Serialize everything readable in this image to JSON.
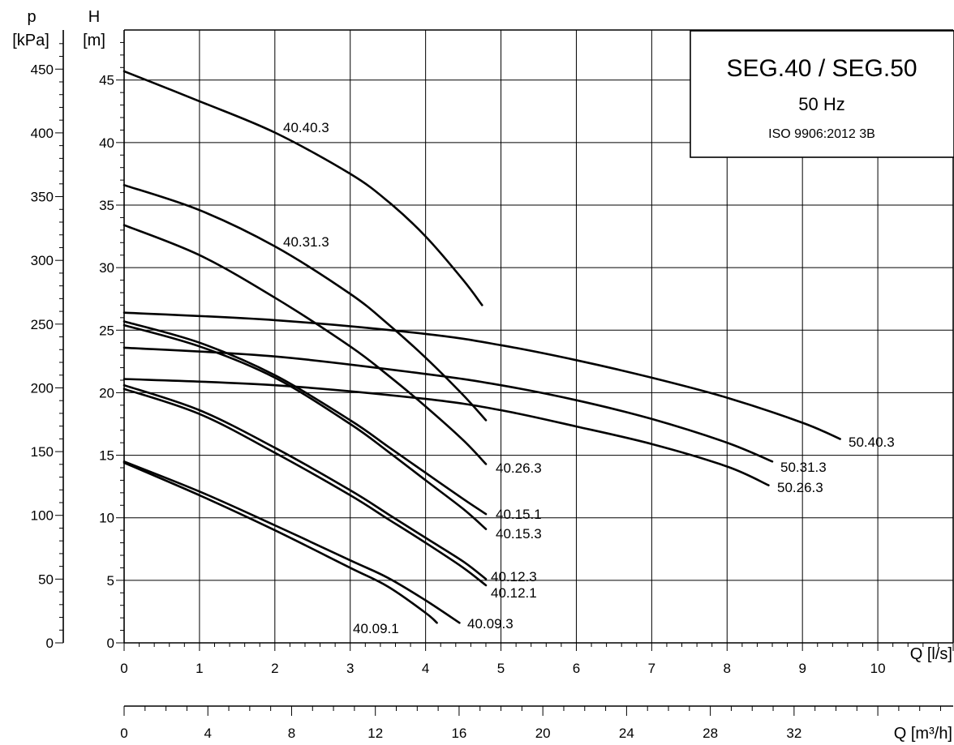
{
  "chart_data": {
    "type": "line",
    "title": "SEG.40 / SEG.50",
    "subtitle": "50 Hz",
    "standard": "ISO 9906:2012 3B",
    "xlabel": "Q [l/s]",
    "x2label": "Q [m³/h]",
    "ylabel_h": "H",
    "ylabel_h_unit": "[m]",
    "ylabel_p": "p",
    "ylabel_p_unit": "[kPa]",
    "xlim": [
      0,
      11
    ],
    "ylim": [
      0,
      49
    ],
    "x_ticks": [
      0,
      1,
      2,
      3,
      4,
      5,
      6,
      7,
      8,
      9,
      10
    ],
    "x_tick_labels": [
      "0",
      "1",
      "2",
      "3",
      "4",
      "5",
      "6",
      "7",
      "8",
      "9",
      "10"
    ],
    "x2_ticks": [
      0,
      4,
      8,
      12,
      16,
      20,
      24,
      28,
      32
    ],
    "x2_tick_labels": [
      "0",
      "4",
      "8",
      "12",
      "16",
      "20",
      "24",
      "28",
      "32"
    ],
    "h_ticks": [
      0,
      5,
      10,
      15,
      20,
      25,
      30,
      35,
      40,
      45
    ],
    "h_tick_labels": [
      "0",
      "5",
      "10",
      "15",
      "20",
      "25",
      "30",
      "35",
      "40",
      "45"
    ],
    "p_ticks": [
      0,
      50,
      100,
      150,
      200,
      250,
      300,
      350,
      400,
      450
    ],
    "p_tick_labels": [
      "0",
      "50",
      "100",
      "150",
      "200",
      "250",
      "300",
      "350",
      "400",
      "450"
    ],
    "grid": true,
    "legend": "none",
    "series": [
      {
        "name": "40.40.3",
        "x": [
          0,
          1,
          2,
          3,
          3.5,
          4,
          4.5,
          4.75
        ],
        "y": [
          45.7,
          43.3,
          40.8,
          37.5,
          35.3,
          32.5,
          29.0,
          27.0
        ]
      },
      {
        "name": "40.31.3",
        "x": [
          0,
          1,
          2,
          3,
          3.5,
          4,
          4.5,
          4.8
        ],
        "y": [
          36.6,
          34.6,
          31.7,
          27.9,
          25.5,
          22.8,
          19.8,
          17.8
        ]
      },
      {
        "name": "40.26.3",
        "x": [
          0,
          1,
          2,
          3,
          3.5,
          4,
          4.5,
          4.8
        ],
        "y": [
          33.4,
          31.0,
          27.6,
          23.7,
          21.4,
          18.9,
          16.2,
          14.3
        ]
      },
      {
        "name": "40.15.1",
        "x": [
          0,
          1,
          2,
          3,
          3.5,
          4,
          4.5,
          4.8
        ],
        "y": [
          25.7,
          24.0,
          21.4,
          17.8,
          15.7,
          13.6,
          11.5,
          10.3
        ]
      },
      {
        "name": "40.15.3",
        "x": [
          0,
          1,
          2,
          3,
          3.5,
          4,
          4.5,
          4.8
        ],
        "y": [
          25.4,
          23.7,
          21.2,
          17.5,
          15.3,
          13.0,
          10.7,
          9.1
        ]
      },
      {
        "name": "40.12.3",
        "x": [
          0,
          1,
          2,
          3,
          3.5,
          4,
          4.5,
          4.8
        ],
        "y": [
          20.6,
          18.6,
          15.6,
          12.2,
          10.3,
          8.4,
          6.5,
          5.1
        ]
      },
      {
        "name": "40.12.1",
        "x": [
          0,
          1,
          2,
          3,
          3.5,
          4,
          4.5,
          4.8
        ],
        "y": [
          20.3,
          18.3,
          15.2,
          11.8,
          9.9,
          8.0,
          6.0,
          4.6
        ]
      },
      {
        "name": "40.09.3",
        "x": [
          0,
          1,
          2,
          3,
          3.5,
          4,
          4.45
        ],
        "y": [
          14.5,
          12.1,
          9.4,
          6.6,
          5.2,
          3.4,
          1.6
        ]
      },
      {
        "name": "40.09.1",
        "x": [
          0,
          1,
          2,
          3,
          3.5,
          4,
          4.15
        ],
        "y": [
          14.4,
          11.8,
          9.0,
          6.0,
          4.5,
          2.4,
          1.6
        ]
      },
      {
        "name": "50.40.3",
        "x": [
          0,
          2,
          4,
          5,
          6,
          7,
          8,
          9,
          9.5
        ],
        "y": [
          26.4,
          25.8,
          24.7,
          23.8,
          22.6,
          21.2,
          19.6,
          17.6,
          16.3
        ]
      },
      {
        "name": "50.31.3",
        "x": [
          0,
          2,
          4,
          5,
          6,
          7,
          8,
          8.6
        ],
        "y": [
          23.6,
          22.9,
          21.5,
          20.6,
          19.4,
          17.9,
          16.0,
          14.5
        ]
      },
      {
        "name": "50.26.3",
        "x": [
          0,
          2,
          4,
          5,
          6,
          7,
          8,
          8.55
        ],
        "y": [
          21.1,
          20.6,
          19.5,
          18.6,
          17.3,
          15.9,
          14.1,
          12.6
        ]
      }
    ]
  }
}
